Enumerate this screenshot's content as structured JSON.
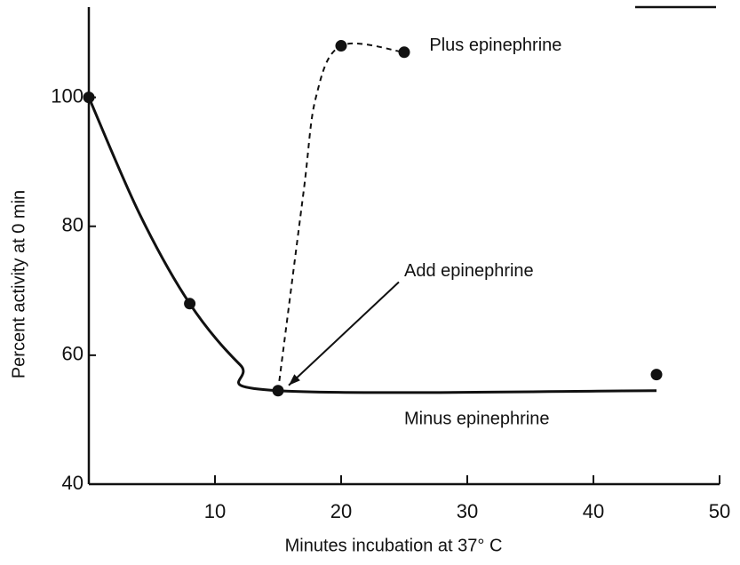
{
  "chart_data": {
    "type": "line",
    "xlabel": "Minutes incubation at 37° C",
    "ylabel": "Percent activity at 0 min",
    "xlim": [
      0,
      50
    ],
    "ylim": [
      40,
      114
    ],
    "xticks": [
      10,
      20,
      30,
      40,
      50
    ],
    "yticks": [
      40,
      60,
      80,
      100
    ],
    "color": "#111111",
    "series": [
      {
        "name": "Minus epinephrine",
        "style": "solid",
        "x": [
          0,
          4,
          8,
          12,
          15,
          45
        ],
        "values": [
          100,
          82,
          68,
          58.5,
          54.5,
          54.5
        ]
      },
      {
        "name": "Plus epinephrine",
        "style": "dashed",
        "x": [
          15,
          17,
          18,
          20,
          25
        ],
        "values": [
          54.5,
          85,
          100,
          108,
          107
        ]
      }
    ],
    "points": {
      "x": [
        0,
        8,
        15,
        20,
        25,
        45
      ],
      "values": [
        100,
        68,
        54.5,
        108,
        107,
        57
      ]
    },
    "annotations": [
      {
        "text": "Plus epinephrine",
        "x": 27,
        "y": 108
      },
      {
        "text": "Add epinephrine",
        "x": 25,
        "y": 73
      },
      {
        "text": "Minus epinephrine",
        "x": 25,
        "y": 50
      }
    ]
  }
}
